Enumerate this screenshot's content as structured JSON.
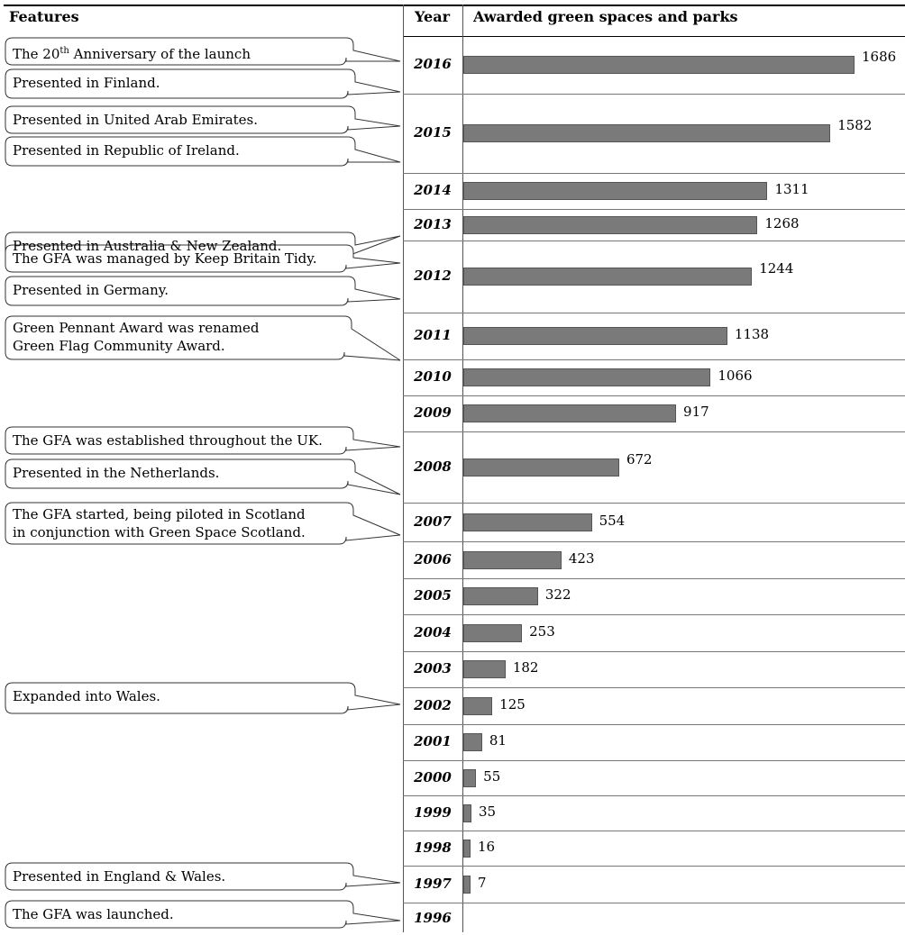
{
  "headers": {
    "features": "Features",
    "year": "Year",
    "awarded": "Awarded green spaces and parks"
  },
  "chart_data": {
    "type": "bar",
    "orientation": "horizontal",
    "categories": [
      "2016",
      "2015",
      "2014",
      "2013",
      "2012",
      "2011",
      "2010",
      "2009",
      "2008",
      "2007",
      "2006",
      "2005",
      "2004",
      "2003",
      "2002",
      "2001",
      "2000",
      "1999",
      "1998",
      "1997",
      "1996"
    ],
    "values": [
      1686,
      1582,
      1311,
      1268,
      1244,
      1138,
      1066,
      917,
      672,
      554,
      423,
      322,
      253,
      182,
      125,
      81,
      55,
      35,
      16,
      7,
      null
    ],
    "xlim": [
      0,
      1700
    ],
    "bar_color": "#7a7a7a",
    "grid": false
  },
  "features": [
    {
      "year": "2016",
      "lines": [
        "The 20",
        "th",
        " Anniversary of the launch"
      ]
    },
    {
      "year": "2016",
      "lines": [
        "Presented in Finland."
      ]
    },
    {
      "year": "2015",
      "lines": [
        "Presented in United Arab Emirates."
      ]
    },
    {
      "year": "2015",
      "lines": [
        "Presented in Republic of Ireland."
      ]
    },
    {
      "year": "2013",
      "lines": [
        "Presented in Australia & New Zealand."
      ]
    },
    {
      "year": "2012",
      "lines": [
        "The GFA was managed by Keep Britain Tidy."
      ]
    },
    {
      "year": "2012",
      "lines": [
        "Presented in Germany."
      ]
    },
    {
      "year": "2011",
      "lines": [
        "Green Pennant Award was renamed",
        "Green Flag Community Award."
      ]
    },
    {
      "year": "2008",
      "lines": [
        "The GFA was established throughout the UK."
      ]
    },
    {
      "year": "2008",
      "lines": [
        "Presented in the Netherlands."
      ]
    },
    {
      "year": "2007",
      "lines": [
        "The GFA started, being piloted in Scotland",
        "in conjunction with Green Space Scotland."
      ]
    },
    {
      "year": "2002",
      "lines": [
        "Expanded into Wales."
      ]
    },
    {
      "year": "1997",
      "lines": [
        "Presented in England & Wales."
      ]
    },
    {
      "year": "1996",
      "lines": [
        "The GFA was launched."
      ]
    }
  ]
}
